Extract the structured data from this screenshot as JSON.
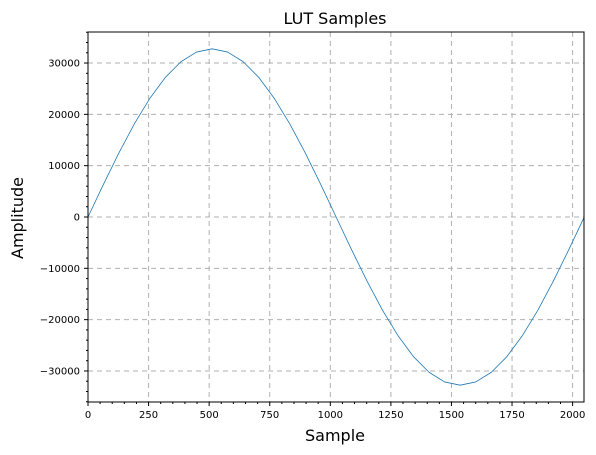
{
  "chart_data": {
    "type": "line",
    "title": "LUT Samples",
    "xlabel": "Sample",
    "ylabel": "Amplitude",
    "xlim": [
      0,
      2047
    ],
    "ylim": [
      -36044.8,
      36044.8
    ],
    "grid": true,
    "x_ticks": [
      0,
      250,
      500,
      750,
      1000,
      1250,
      1500,
      1750,
      2000
    ],
    "x_tick_labels": [
      "0",
      "250",
      "500",
      "750",
      "1000",
      "1250",
      "1500",
      "1750",
      "2000"
    ],
    "y_ticks": [
      -30000,
      -20000,
      -10000,
      0,
      10000,
      20000,
      30000
    ],
    "y_tick_labels": [
      "−30000",
      "−20000",
      "−10000",
      "0",
      "10000",
      "20000",
      "30000"
    ],
    "x_minor_step": 50,
    "y_minor_step": 2000,
    "series": [
      {
        "color": "#1f77b4",
        "points": [
          [
            0,
            0
          ],
          [
            64,
            6393
          ],
          [
            128,
            12540
          ],
          [
            192,
            18205
          ],
          [
            256,
            23170
          ],
          [
            320,
            27245
          ],
          [
            384,
            30273
          ],
          [
            448,
            32138
          ],
          [
            512,
            32767
          ],
          [
            576,
            32138
          ],
          [
            640,
            30273
          ],
          [
            704,
            27245
          ],
          [
            768,
            23170
          ],
          [
            832,
            18205
          ],
          [
            896,
            12540
          ],
          [
            960,
            6393
          ],
          [
            1024,
            0
          ],
          [
            1088,
            -6393
          ],
          [
            1152,
            -12540
          ],
          [
            1216,
            -18205
          ],
          [
            1280,
            -23170
          ],
          [
            1344,
            -27245
          ],
          [
            1408,
            -30273
          ],
          [
            1472,
            -32138
          ],
          [
            1536,
            -32767
          ],
          [
            1600,
            -32138
          ],
          [
            1664,
            -30273
          ],
          [
            1728,
            -27245
          ],
          [
            1792,
            -23170
          ],
          [
            1856,
            -18205
          ],
          [
            1920,
            -12540
          ],
          [
            1984,
            -6393
          ],
          [
            2047,
            -101
          ]
        ]
      }
    ]
  }
}
